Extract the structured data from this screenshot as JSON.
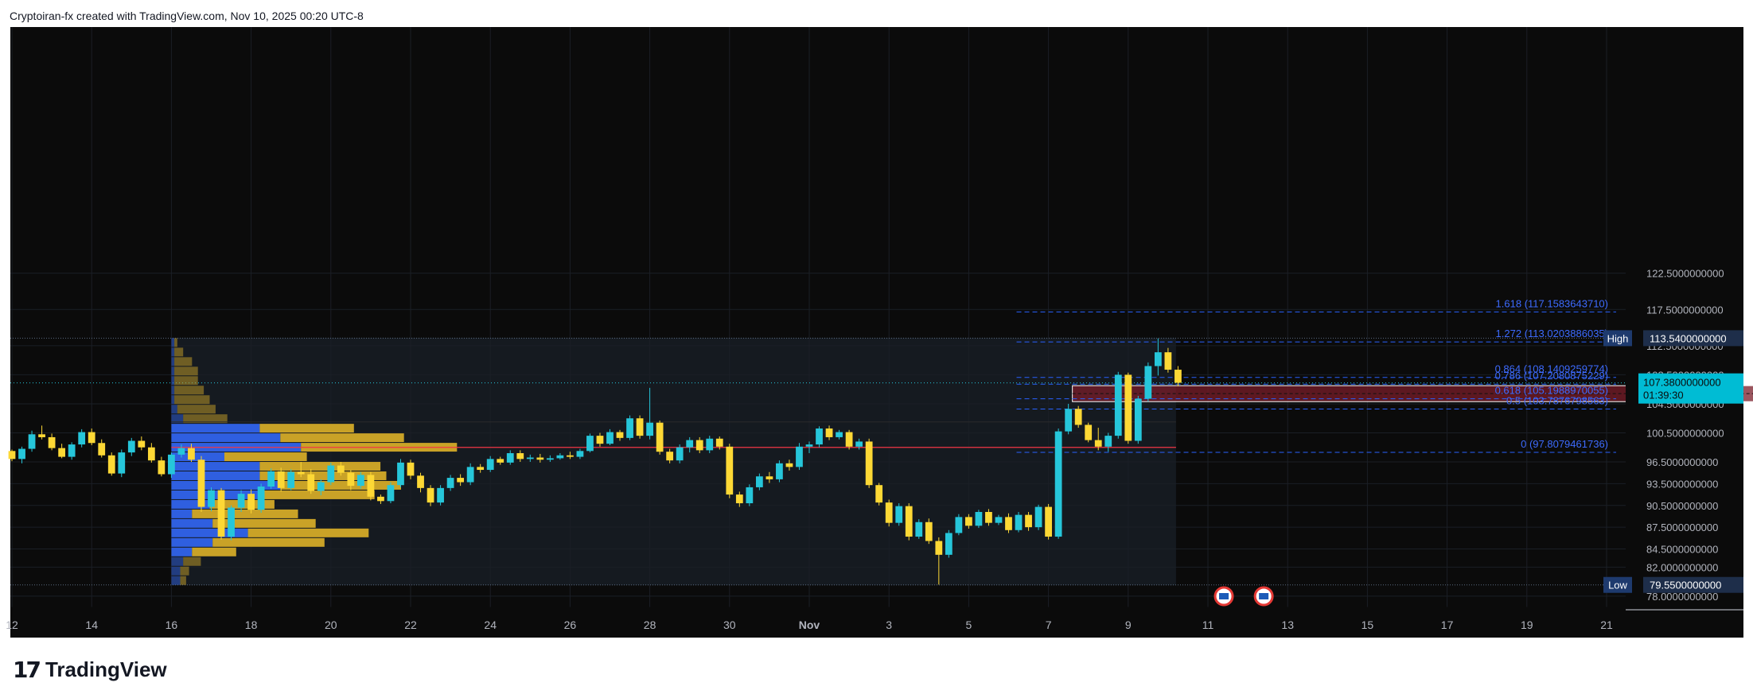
{
  "header": {
    "attribution": "Cryptoiran-fx created with TradingView.com, Nov 10, 2025 00:20 UTC-8"
  },
  "footer": {
    "brand": "TradingView",
    "logo_icon": "tradingview-logo-icon"
  },
  "colors": {
    "background": "#0b0b0b",
    "up": "#26c6da",
    "down": "#fdd835",
    "fib": "#2962ff",
    "vp_up": "#2f5fe0",
    "vp_down": "#c9a227",
    "poc": "#f23645",
    "zone": "#7a1e2a",
    "price_badge": "#00bcd4",
    "label_bg": "#1e3a6e"
  },
  "chart_data": {
    "type": "candlestick",
    "x_ticks": [
      "12",
      "14",
      "16",
      "18",
      "20",
      "22",
      "24",
      "26",
      "28",
      "30",
      "Nov",
      "3",
      "5",
      "7",
      "9",
      "11",
      "13",
      "15",
      "17",
      "19",
      "21"
    ],
    "y_ticks": [
      "122.5000000000",
      "117.5000000000",
      "112.5000000000",
      "108.5000000000",
      "104.5000000000",
      "100.5000000000",
      "96.5000000000",
      "93.5000000000",
      "90.5000000000",
      "87.5000000000",
      "84.5000000000",
      "82.0000000000",
      "78.0000000000"
    ],
    "high": {
      "label": "High",
      "value": "113.5400000000",
      "price": 113.54
    },
    "low": {
      "label": "Low",
      "value": "79.5500000000",
      "price": 79.55
    },
    "last_price": {
      "value": "107.3800000000",
      "countdown": "01:39:30",
      "price": 107.38
    },
    "fib_levels": [
      {
        "label": "1.618 (117.1583643710)",
        "price": 117.158
      },
      {
        "label": "1.272 (113.0203886035)",
        "price": 113.02
      },
      {
        "label": "0.864 (108.1409259774)",
        "price": 108.141
      },
      {
        "label": "0.786 (107.2080875229)",
        "price": 107.208
      },
      {
        "label": "0.618 (105.1988970055)",
        "price": 105.199
      },
      {
        "label": "0.5 (103.7876798563)",
        "price": 103.788
      },
      {
        "label": "0 (97.8079461736)",
        "price": 97.808
      }
    ],
    "zone": {
      "price_top": 107.0,
      "price_bottom": 104.8,
      "start_day": 26.6,
      "end_day": 46.3
    },
    "poc_price": 98.5,
    "volume_profile": {
      "rows": [
        {
          "up": 1,
          "down": 1
        },
        {
          "up": 1,
          "down": 3
        },
        {
          "up": 1,
          "down": 6
        },
        {
          "up": 1,
          "down": 8
        },
        {
          "up": 1,
          "down": 8
        },
        {
          "up": 1,
          "down": 10
        },
        {
          "up": 1,
          "down": 12
        },
        {
          "up": 2,
          "down": 13
        },
        {
          "up": 4,
          "down": 15
        },
        {
          "up": 30,
          "down": 32
        },
        {
          "up": 37,
          "down": 42
        },
        {
          "up": 44,
          "down": 53
        },
        {
          "up": 18,
          "down": 28
        },
        {
          "up": 30,
          "down": 41
        },
        {
          "up": 30,
          "down": 43
        },
        {
          "up": 37,
          "down": 41
        },
        {
          "up": 30,
          "down": 39
        },
        {
          "up": 13,
          "down": 22
        },
        {
          "up": 7,
          "down": 36
        },
        {
          "up": 14,
          "down": 35
        },
        {
          "up": 26,
          "down": 41
        },
        {
          "up": 14,
          "down": 38
        },
        {
          "up": 7,
          "down": 15
        },
        {
          "up": 4,
          "down": 6
        },
        {
          "up": 3,
          "down": 3
        },
        {
          "up": 3,
          "down": 2
        }
      ]
    },
    "candles": [
      [
        98.0,
        98.2,
        96.6,
        96.9
      ],
      [
        96.9,
        98.6,
        96.3,
        98.3
      ],
      [
        98.3,
        100.8,
        97.9,
        100.3
      ],
      [
        100.3,
        101.5,
        99.6,
        99.9
      ],
      [
        99.9,
        100.4,
        98.1,
        98.4
      ],
      [
        98.4,
        99.0,
        97.0,
        97.2
      ],
      [
        97.2,
        99.2,
        96.8,
        98.9
      ],
      [
        98.9,
        101.0,
        98.5,
        100.6
      ],
      [
        100.6,
        101.1,
        98.8,
        99.1
      ],
      [
        99.1,
        99.6,
        97.1,
        97.4
      ],
      [
        97.4,
        97.8,
        94.6,
        94.9
      ],
      [
        94.9,
        98.2,
        94.4,
        97.8
      ],
      [
        97.8,
        99.8,
        97.3,
        99.4
      ],
      [
        99.4,
        100.0,
        98.1,
        98.5
      ],
      [
        98.5,
        99.1,
        96.4,
        96.7
      ],
      [
        96.7,
        97.2,
        94.5,
        94.8
      ],
      [
        94.8,
        97.8,
        94.3,
        97.5
      ],
      [
        97.5,
        98.9,
        97.1,
        98.4
      ],
      [
        98.4,
        99.0,
        96.5,
        96.8
      ],
      [
        96.8,
        97.3,
        89.6,
        90.3
      ],
      [
        90.3,
        93.0,
        89.7,
        92.6
      ],
      [
        92.6,
        92.9,
        85.8,
        86.2
      ],
      [
        86.2,
        90.5,
        85.7,
        90.2
      ],
      [
        90.2,
        92.6,
        89.6,
        92.1
      ],
      [
        92.1,
        92.7,
        89.4,
        89.9
      ],
      [
        89.9,
        93.5,
        89.5,
        93.1
      ],
      [
        93.1,
        95.6,
        92.8,
        95.2
      ],
      [
        95.2,
        95.7,
        92.4,
        92.9
      ],
      [
        92.9,
        95.5,
        92.6,
        95.1
      ],
      [
        95.1,
        96.5,
        94.4,
        94.8
      ],
      [
        94.8,
        95.5,
        92.1,
        92.5
      ],
      [
        92.5,
        94.1,
        91.9,
        93.7
      ],
      [
        93.7,
        96.4,
        93.3,
        96.0
      ],
      [
        96.0,
        96.5,
        94.6,
        95.0
      ],
      [
        95.0,
        95.4,
        92.6,
        93.2
      ],
      [
        93.2,
        95.1,
        92.8,
        94.7
      ],
      [
        94.7,
        95.1,
        91.2,
        91.7
      ],
      [
        91.7,
        92.0,
        90.7,
        91.1
      ],
      [
        91.1,
        93.7,
        90.8,
        93.3
      ],
      [
        93.3,
        96.9,
        93.0,
        96.4
      ],
      [
        96.4,
        96.8,
        94.1,
        94.6
      ],
      [
        94.6,
        95.0,
        92.3,
        92.9
      ],
      [
        92.9,
        93.3,
        90.4,
        90.9
      ],
      [
        90.9,
        93.3,
        90.5,
        92.9
      ],
      [
        92.9,
        94.7,
        92.5,
        94.3
      ],
      [
        94.3,
        94.8,
        93.2,
        93.7
      ],
      [
        93.7,
        96.3,
        93.3,
        95.8
      ],
      [
        95.8,
        96.2,
        95.0,
        95.4
      ],
      [
        95.4,
        97.3,
        95.1,
        96.9
      ],
      [
        96.9,
        97.2,
        96.1,
        96.4
      ],
      [
        96.4,
        98.1,
        96.1,
        97.7
      ],
      [
        97.7,
        98.1,
        96.5,
        96.9
      ],
      [
        96.9,
        97.5,
        96.5,
        97.1
      ],
      [
        97.1,
        97.6,
        96.4,
        96.8
      ],
      [
        96.8,
        97.4,
        96.5,
        97.0
      ],
      [
        97.0,
        97.7,
        96.8,
        97.4
      ],
      [
        97.4,
        97.9,
        96.9,
        97.2
      ],
      [
        97.2,
        98.3,
        96.9,
        98.0
      ],
      [
        98.0,
        100.4,
        97.8,
        100.1
      ],
      [
        100.1,
        100.5,
        98.6,
        99.0
      ],
      [
        99.0,
        101.0,
        98.8,
        100.6
      ],
      [
        100.6,
        100.9,
        99.4,
        99.8
      ],
      [
        99.8,
        102.9,
        99.5,
        102.5
      ],
      [
        102.5,
        102.9,
        99.7,
        100.1
      ],
      [
        100.1,
        106.7,
        99.6,
        101.9
      ],
      [
        101.9,
        102.2,
        97.5,
        97.9
      ],
      [
        97.9,
        98.3,
        96.3,
        96.7
      ],
      [
        96.7,
        98.9,
        96.3,
        98.5
      ],
      [
        98.5,
        99.9,
        97.8,
        99.5
      ],
      [
        99.5,
        99.9,
        97.7,
        98.1
      ],
      [
        98.1,
        100.1,
        97.7,
        99.7
      ],
      [
        99.7,
        100.0,
        98.2,
        98.6
      ],
      [
        98.6,
        99.0,
        91.5,
        92.0
      ],
      [
        92.0,
        92.4,
        90.3,
        90.8
      ],
      [
        90.8,
        93.4,
        90.4,
        93.0
      ],
      [
        93.0,
        94.9,
        92.6,
        94.5
      ],
      [
        94.5,
        95.1,
        93.6,
        94.1
      ],
      [
        94.1,
        96.7,
        93.7,
        96.3
      ],
      [
        96.3,
        96.8,
        95.3,
        95.8
      ],
      [
        95.8,
        99.1,
        95.4,
        98.6
      ],
      [
        98.6,
        99.3,
        97.7,
        98.9
      ],
      [
        98.9,
        101.4,
        98.5,
        101.1
      ],
      [
        101.1,
        101.5,
        99.5,
        99.9
      ],
      [
        99.9,
        100.9,
        99.6,
        100.6
      ],
      [
        100.6,
        100.9,
        98.2,
        98.6
      ],
      [
        98.6,
        99.7,
        98.2,
        99.3
      ],
      [
        99.3,
        99.7,
        92.9,
        93.3
      ],
      [
        93.3,
        93.6,
        90.5,
        90.9
      ],
      [
        90.9,
        91.3,
        87.6,
        88.1
      ],
      [
        88.1,
        90.8,
        87.7,
        90.4
      ],
      [
        90.4,
        90.8,
        85.7,
        86.2
      ],
      [
        86.2,
        88.6,
        85.9,
        88.2
      ],
      [
        88.2,
        88.7,
        85.2,
        85.6
      ],
      [
        85.6,
        86.1,
        79.6,
        83.7
      ],
      [
        83.7,
        87.1,
        83.3,
        86.7
      ],
      [
        86.7,
        89.3,
        86.4,
        88.9
      ],
      [
        88.9,
        89.3,
        87.3,
        87.7
      ],
      [
        87.7,
        89.9,
        87.4,
        89.6
      ],
      [
        89.6,
        90.0,
        87.7,
        88.1
      ],
      [
        88.1,
        89.2,
        87.8,
        88.9
      ],
      [
        88.9,
        89.4,
        86.7,
        87.1
      ],
      [
        87.1,
        89.6,
        86.8,
        89.2
      ],
      [
        89.2,
        89.6,
        87.0,
        87.5
      ],
      [
        87.5,
        90.6,
        87.1,
        90.3
      ],
      [
        90.3,
        90.7,
        85.8,
        86.2
      ],
      [
        86.2,
        101.1,
        85.9,
        100.7
      ],
      [
        100.7,
        104.5,
        100.3,
        103.8
      ],
      [
        103.8,
        104.2,
        101.2,
        101.6
      ],
      [
        101.6,
        101.9,
        99.2,
        99.5
      ],
      [
        99.5,
        101.2,
        98.1,
        98.6
      ],
      [
        98.6,
        100.5,
        97.9,
        100.1
      ],
      [
        100.1,
        108.9,
        99.7,
        108.5
      ],
      [
        108.5,
        108.8,
        99.0,
        99.4
      ],
      [
        99.4,
        105.6,
        99.0,
        105.2
      ],
      [
        105.2,
        110.2,
        104.8,
        109.7
      ],
      [
        109.7,
        113.5,
        108.4,
        111.6
      ],
      [
        111.6,
        112.2,
        108.8,
        109.2
      ],
      [
        109.2,
        109.7,
        106.9,
        107.4
      ]
    ]
  }
}
